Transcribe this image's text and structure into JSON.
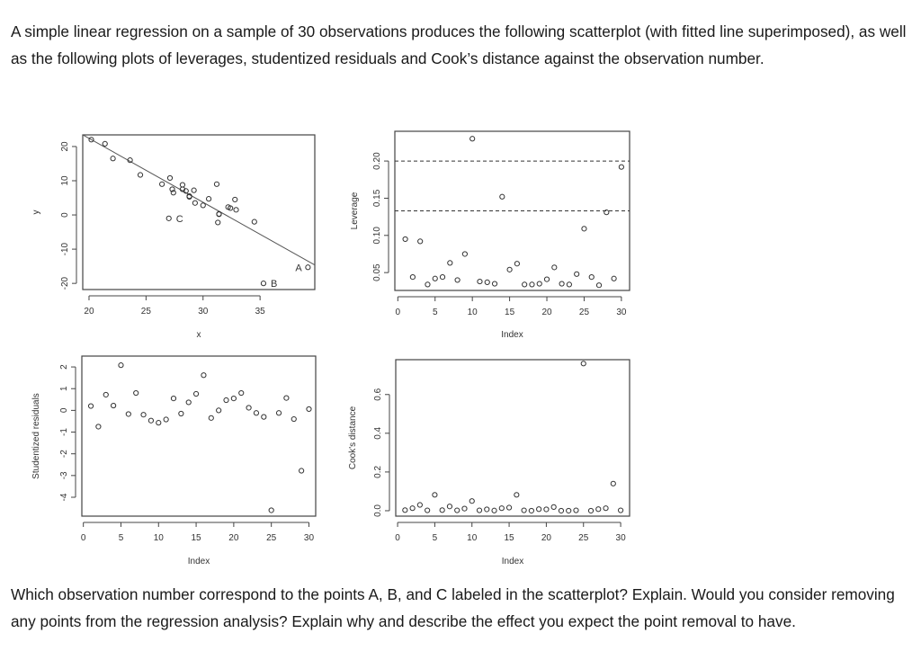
{
  "intro": "A simple linear regression on a sample of  30 observations produces the following scatterplot (with fitted line superimposed), as well as the following plots of leverages, studentized residuals and Cook’s distance against the observation number.",
  "question": "Which observation number correspond to the points A, B, and C labeled in the scatterplot? Explain. Would you consider removing any points from the regression analysis? Explain why and describe the effect you expect the point removal to have.",
  "chart_data": [
    {
      "type": "scatter",
      "xlabel": "x",
      "ylabel": "y",
      "xlim": [
        19.45,
        39.8
      ],
      "ylim": [
        -21.8,
        23.4
      ],
      "xticks": [
        20,
        25,
        30,
        35
      ],
      "yticks": [
        -20,
        -10,
        0,
        10,
        20
      ],
      "points": [
        {
          "x": 20.2,
          "y": 22
        },
        {
          "x": 21.4,
          "y": 20.8
        },
        {
          "x": 22.1,
          "y": 16.5
        },
        {
          "x": 23.6,
          "y": 16
        },
        {
          "x": 24.5,
          "y": 11.7
        },
        {
          "x": 26.4,
          "y": 9
        },
        {
          "x": 27.1,
          "y": 10.8
        },
        {
          "x": 27.3,
          "y": 7.5
        },
        {
          "x": 27.4,
          "y": 6.5
        },
        {
          "x": 27.0,
          "y": -1,
          "label": "C"
        },
        {
          "x": 28.2,
          "y": 8.8
        },
        {
          "x": 28.2,
          "y": 7.5
        },
        {
          "x": 28.5,
          "y": 7
        },
        {
          "x": 28.8,
          "y": 5.5
        },
        {
          "x": 28.8,
          "y": 5.3
        },
        {
          "x": 29.2,
          "y": 7.2
        },
        {
          "x": 29.3,
          "y": 3.5
        },
        {
          "x": 30.0,
          "y": 2.8
        },
        {
          "x": 30.5,
          "y": 4.7
        },
        {
          "x": 31.2,
          "y": 9
        },
        {
          "x": 31.3,
          "y": -2.2
        },
        {
          "x": 31.4,
          "y": 0.2
        },
        {
          "x": 31.4,
          "y": 0.3
        },
        {
          "x": 32.2,
          "y": 2.3
        },
        {
          "x": 32.4,
          "y": 2
        },
        {
          "x": 32.8,
          "y": 4.5
        },
        {
          "x": 32.9,
          "y": 1.5
        },
        {
          "x": 34.5,
          "y": -2
        },
        {
          "x": 35.3,
          "y": -20,
          "label": "B"
        },
        {
          "x": 39.2,
          "y": -15.3,
          "label": "A"
        }
      ],
      "fitted_line": {
        "intercept": 59.8,
        "slope": -1.87
      }
    },
    {
      "type": "scatter",
      "xlabel": "Index",
      "ylabel": "Leverage",
      "xlim": [
        -0.4,
        31.1
      ],
      "ylim": [
        0.026,
        0.24
      ],
      "xticks": [
        0,
        5,
        10,
        15,
        20,
        25,
        30
      ],
      "yticks": [
        0.05,
        0.1,
        0.15,
        0.2
      ],
      "ytick_labels": [
        "0.05",
        "0.10",
        "0.15",
        "0.20"
      ],
      "hlines": [
        0.2,
        0.133
      ],
      "values": [
        0.095,
        0.044,
        0.092,
        0.034,
        0.042,
        0.044,
        0.063,
        0.04,
        0.075,
        0.23,
        0.038,
        0.037,
        0.035,
        0.152,
        0.054,
        0.062,
        0.034,
        0.034,
        0.035,
        0.041,
        0.057,
        0.035,
        0.034,
        0.048,
        0.109,
        0.044,
        0.033,
        0.131,
        0.042,
        0.192
      ]
    },
    {
      "type": "scatter",
      "xlabel": "Index",
      "ylabel": "Studentized residuals",
      "xlim": [
        -0.2,
        30.9
      ],
      "ylim": [
        -4.87,
        2.5
      ],
      "xticks": [
        0,
        5,
        10,
        15,
        20,
        25,
        30
      ],
      "yticks": [
        -4,
        -3,
        -2,
        -1,
        0,
        1,
        2
      ],
      "values": [
        0.2,
        -0.75,
        0.72,
        0.22,
        2.08,
        -0.17,
        0.8,
        -0.2,
        -0.47,
        -0.57,
        -0.42,
        0.55,
        -0.15,
        0.37,
        0.76,
        1.62,
        -0.35,
        0.0,
        0.47,
        0.55,
        0.8,
        0.12,
        -0.12,
        -0.3,
        -4.6,
        -0.12,
        0.57,
        -0.4,
        -2.78,
        0.06
      ]
    },
    {
      "type": "scatter",
      "xlabel": "Index",
      "ylabel": "Cook's distance",
      "xlim": [
        -0.25,
        31.2
      ],
      "ylim": [
        -0.028,
        0.78
      ],
      "xticks": [
        0,
        5,
        10,
        15,
        20,
        25,
        30
      ],
      "yticks": [
        0.0,
        0.2,
        0.4,
        0.6
      ],
      "ytick_labels": [
        "0.0",
        "0.2",
        "0.4",
        "0.6"
      ],
      "values": [
        0.003,
        0.013,
        0.03,
        0.002,
        0.082,
        0.003,
        0.022,
        0.002,
        0.011,
        0.05,
        0.002,
        0.007,
        0.001,
        0.013,
        0.016,
        0.082,
        0.002,
        0.0,
        0.008,
        0.007,
        0.019,
        0.0,
        0.0,
        0.002,
        0.76,
        0.0,
        0.008,
        0.013,
        0.14,
        0.002
      ]
    }
  ]
}
